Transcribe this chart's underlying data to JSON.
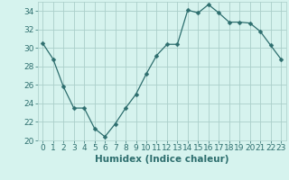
{
  "x": [
    0,
    1,
    2,
    3,
    4,
    5,
    6,
    7,
    8,
    9,
    10,
    11,
    12,
    13,
    14,
    15,
    16,
    17,
    18,
    19,
    20,
    21,
    22,
    23
  ],
  "y": [
    30.5,
    28.8,
    25.8,
    23.5,
    23.5,
    21.3,
    20.4,
    21.8,
    23.5,
    25.0,
    27.2,
    29.2,
    30.4,
    30.4,
    34.1,
    33.8,
    34.7,
    33.8,
    32.8,
    32.8,
    32.7,
    31.8,
    30.3,
    28.8
  ],
  "line_color": "#2d6e6e",
  "marker": "D",
  "marker_size": 2.5,
  "bg_color": "#d6f3ee",
  "grid_color": "#aacfca",
  "xlabel": "Humidex (Indice chaleur)",
  "ylim": [
    20,
    35
  ],
  "xlim": [
    -0.5,
    23.5
  ],
  "yticks": [
    20,
    22,
    24,
    26,
    28,
    30,
    32,
    34
  ],
  "xticks": [
    0,
    1,
    2,
    3,
    4,
    5,
    6,
    7,
    8,
    9,
    10,
    11,
    12,
    13,
    14,
    15,
    16,
    17,
    18,
    19,
    20,
    21,
    22,
    23
  ],
  "xtick_labels": [
    "0",
    "1",
    "2",
    "3",
    "4",
    "5",
    "6",
    "7",
    "8",
    "9",
    "10",
    "11",
    "12",
    "13",
    "14",
    "15",
    "16",
    "17",
    "18",
    "19",
    "20",
    "21",
    "22",
    "23"
  ],
  "tick_fontsize": 6.5,
  "xlabel_fontsize": 7.5
}
